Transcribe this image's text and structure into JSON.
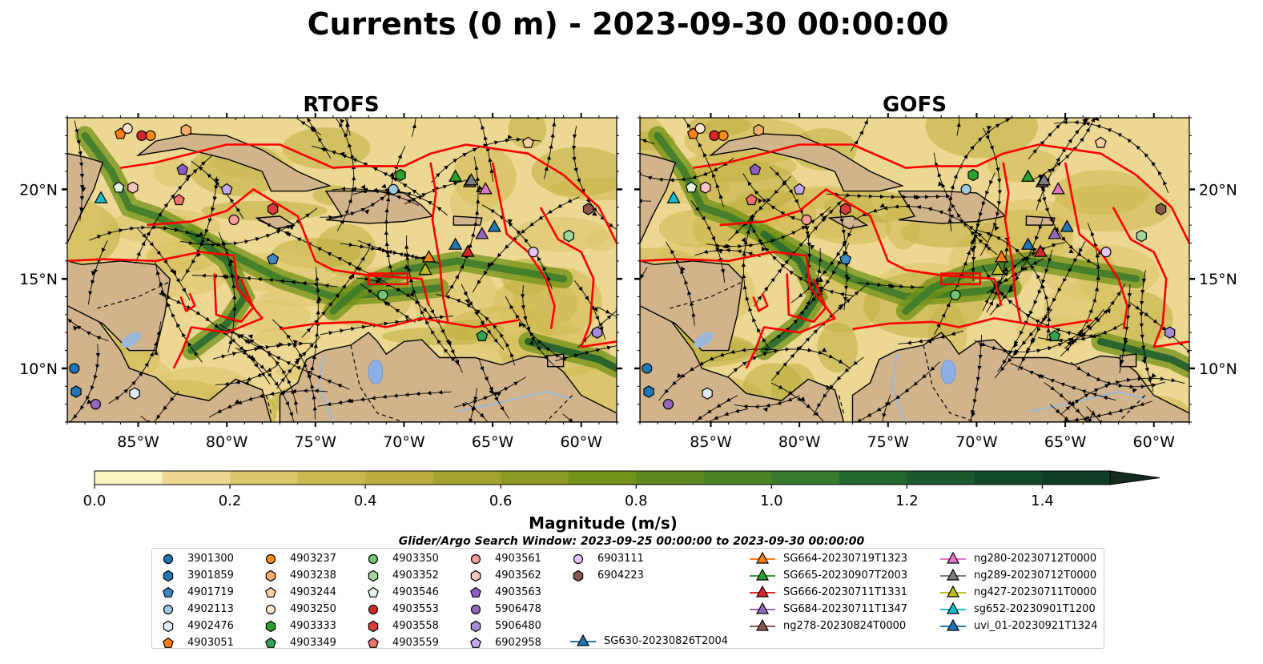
{
  "title": "Currents (0 m) - 2023-09-30 00:00:00",
  "panels": [
    {
      "name": "RTOFS"
    },
    {
      "name": "GOFS"
    }
  ],
  "lon_ticks": [
    "85°W",
    "80°W",
    "75°W",
    "70°W",
    "65°W",
    "60°W"
  ],
  "lat_ticks": [
    "20°N",
    "15°N",
    "10°N"
  ],
  "map_extent": {
    "lon": [
      -89,
      -58
    ],
    "lat": [
      7,
      24
    ]
  },
  "colorbar": {
    "label": "Magnitude (m/s)",
    "ticks": [
      "0.0",
      "0.2",
      "0.4",
      "0.6",
      "0.8",
      "1.0",
      "1.2",
      "1.4"
    ],
    "range": [
      0,
      1.5
    ],
    "extend": "max",
    "colors": [
      "#fbf4c0",
      "#ecd892",
      "#dcc56a",
      "#cdb84e",
      "#bcae3c",
      "#a5a22e",
      "#8d9a21",
      "#729218",
      "#5c8a1f",
      "#4a8427",
      "#3a7a2c",
      "#23682f",
      "#195a2e",
      "#124a29",
      "#103d26",
      "#152b1e"
    ]
  },
  "colors": {
    "land": "#d2b48c",
    "eez": "#ff0000",
    "river": "#9ab9d8",
    "lake": "#8cb0e6"
  },
  "search_window": "Glider/Argo Search Window: 2023-09-25 00:00:00 to 2023-09-30 00:00:00",
  "legend": {
    "argo": [
      {
        "id": "3901300",
        "marker": "circle",
        "color": "#1f77b4"
      },
      {
        "id": "3901859",
        "marker": "hexagon",
        "color": "#1f77b4"
      },
      {
        "id": "4901719",
        "marker": "pentagon",
        "color": "#3d88c5"
      },
      {
        "id": "4902113",
        "marker": "circle",
        "color": "#9ecae1"
      },
      {
        "id": "4902476",
        "marker": "hexagon",
        "color": "#deebf7"
      },
      {
        "id": "4903051",
        "marker": "pentagon",
        "color": "#ff7f0e"
      },
      {
        "id": "4903237",
        "marker": "circle",
        "color": "#ff8c1a"
      },
      {
        "id": "4903238",
        "marker": "hexagon",
        "color": "#fdae6b"
      },
      {
        "id": "4903244",
        "marker": "pentagon",
        "color": "#fdd0a2"
      },
      {
        "id": "4903250",
        "marker": "circle",
        "color": "#fee6ce"
      },
      {
        "id": "4903333",
        "marker": "hexagon",
        "color": "#2ca02c"
      },
      {
        "id": "4903349",
        "marker": "pentagon",
        "color": "#31a354"
      },
      {
        "id": "4903350",
        "marker": "circle",
        "color": "#74c476"
      },
      {
        "id": "4903352",
        "marker": "hexagon",
        "color": "#a1d99b"
      },
      {
        "id": "4903546",
        "marker": "pentagon",
        "color": "#e5f5e0"
      },
      {
        "id": "4903553",
        "marker": "circle",
        "color": "#d62728"
      },
      {
        "id": "4903558",
        "marker": "hexagon",
        "color": "#e03a3a"
      },
      {
        "id": "4903559",
        "marker": "pentagon",
        "color": "#f07070"
      },
      {
        "id": "4903561",
        "marker": "circle",
        "color": "#f79b9b"
      },
      {
        "id": "4903562",
        "marker": "hexagon",
        "color": "#fcc5c0"
      },
      {
        "id": "4903563",
        "marker": "pentagon",
        "color": "#8c5cc4"
      },
      {
        "id": "5906478",
        "marker": "circle",
        "color": "#9467bd"
      },
      {
        "id": "5906480",
        "marker": "hexagon",
        "color": "#a88bd6"
      },
      {
        "id": "6902958",
        "marker": "pentagon",
        "color": "#c6a8f0"
      },
      {
        "id": "6903111",
        "marker": "circle",
        "color": "#e2c6f7"
      },
      {
        "id": "6904223",
        "marker": "hexagon",
        "color": "#8c564b"
      }
    ],
    "gliders": [
      {
        "id": "SG630-20230826T2004",
        "color": "#1f77b4"
      },
      {
        "id": "SG664-20230719T1323",
        "color": "#ff7f0e"
      },
      {
        "id": "SG665-20230907T2003",
        "color": "#2ca02c"
      },
      {
        "id": "SG666-20230711T1331",
        "color": "#d62728"
      },
      {
        "id": "SG684-20230711T1347",
        "color": "#9467bd"
      },
      {
        "id": "ng278-20230824T0000",
        "color": "#8c564b"
      },
      {
        "id": "ng280-20230712T0000",
        "color": "#e377c2"
      },
      {
        "id": "ng289-20230712T0000",
        "color": "#7f7f7f"
      },
      {
        "id": "ng427-20230711T0000",
        "color": "#bcbd22"
      },
      {
        "id": "sg652-20230901T1200",
        "color": "#17becf"
      },
      {
        "id": "uvi_01-20230921T1324",
        "color": "#1f77b4"
      }
    ]
  },
  "markers": [
    {
      "id": "3901300",
      "lon": -88.6,
      "lat": 10.0
    },
    {
      "id": "3901859",
      "lon": -88.5,
      "lat": 8.7
    },
    {
      "id": "4901719",
      "lon": -77.4,
      "lat": 16.1
    },
    {
      "id": "4902113",
      "lon": -70.6,
      "lat": 20.0
    },
    {
      "id": "4902476",
      "lon": -85.2,
      "lat": 8.6
    },
    {
      "id": "4903051",
      "lon": -86.0,
      "lat": 23.1
    },
    {
      "id": "4903237",
      "lon": -84.3,
      "lat": 23.0
    },
    {
      "id": "4903238",
      "lon": -82.3,
      "lat": 23.3
    },
    {
      "id": "4903244",
      "lon": -63.0,
      "lat": 22.6
    },
    {
      "id": "4903250",
      "lon": -85.6,
      "lat": 23.4
    },
    {
      "id": "4903333",
      "lon": -70.2,
      "lat": 20.8
    },
    {
      "id": "4903349",
      "lon": -65.6,
      "lat": 11.8
    },
    {
      "id": "4903350",
      "lon": -71.2,
      "lat": 14.1
    },
    {
      "id": "4903352",
      "lon": -60.7,
      "lat": 17.4
    },
    {
      "id": "4903546",
      "lon": -86.1,
      "lat": 20.1
    },
    {
      "id": "4903553",
      "lon": -84.8,
      "lat": 23.0
    },
    {
      "id": "4903558",
      "lon": -77.4,
      "lat": 18.9
    },
    {
      "id": "4903559",
      "lon": -82.7,
      "lat": 19.4
    },
    {
      "id": "4903561",
      "lon": -79.6,
      "lat": 18.3
    },
    {
      "id": "4903562",
      "lon": -85.3,
      "lat": 20.1
    },
    {
      "id": "4903563",
      "lon": -82.5,
      "lat": 21.1
    },
    {
      "id": "5906478",
      "lon": -87.4,
      "lat": 8.0
    },
    {
      "id": "5906480",
      "lon": -59.1,
      "lat": 12.0
    },
    {
      "id": "6902958",
      "lon": -80.0,
      "lat": 20.0
    },
    {
      "id": "6903111",
      "lon": -62.7,
      "lat": 16.5
    },
    {
      "id": "6904223",
      "lon": -59.6,
      "lat": 18.9
    },
    {
      "id": "SG630-20230826T2004",
      "lon": -67.1,
      "lat": 16.9,
      "glider": true
    },
    {
      "id": "SG664-20230719T1323",
      "lon": -68.6,
      "lat": 16.2,
      "glider": true
    },
    {
      "id": "SG665-20230907T2003",
      "lon": -67.1,
      "lat": 20.7,
      "glider": true
    },
    {
      "id": "SG666-20230711T1331",
      "lon": -66.4,
      "lat": 16.5,
      "glider": true
    },
    {
      "id": "SG684-20230711T1347",
      "lon": -65.6,
      "lat": 17.5,
      "glider": true
    },
    {
      "id": "ng278-20230824T0000",
      "lon": -66.3,
      "lat": 20.4,
      "glider": true
    },
    {
      "id": "ng280-20230712T0000",
      "lon": -65.4,
      "lat": 20.0,
      "glider": true
    },
    {
      "id": "ng289-20230712T0000",
      "lon": -66.2,
      "lat": 20.5,
      "glider": true
    },
    {
      "id": "ng427-20230711T0000",
      "lon": -68.8,
      "lat": 15.5,
      "glider": true
    },
    {
      "id": "sg652-20230901T1200",
      "lon": -87.1,
      "lat": 19.5,
      "glider": true
    },
    {
      "id": "uvi_01-20230921T1324",
      "lon": -64.9,
      "lat": 17.9,
      "glider": true
    }
  ]
}
